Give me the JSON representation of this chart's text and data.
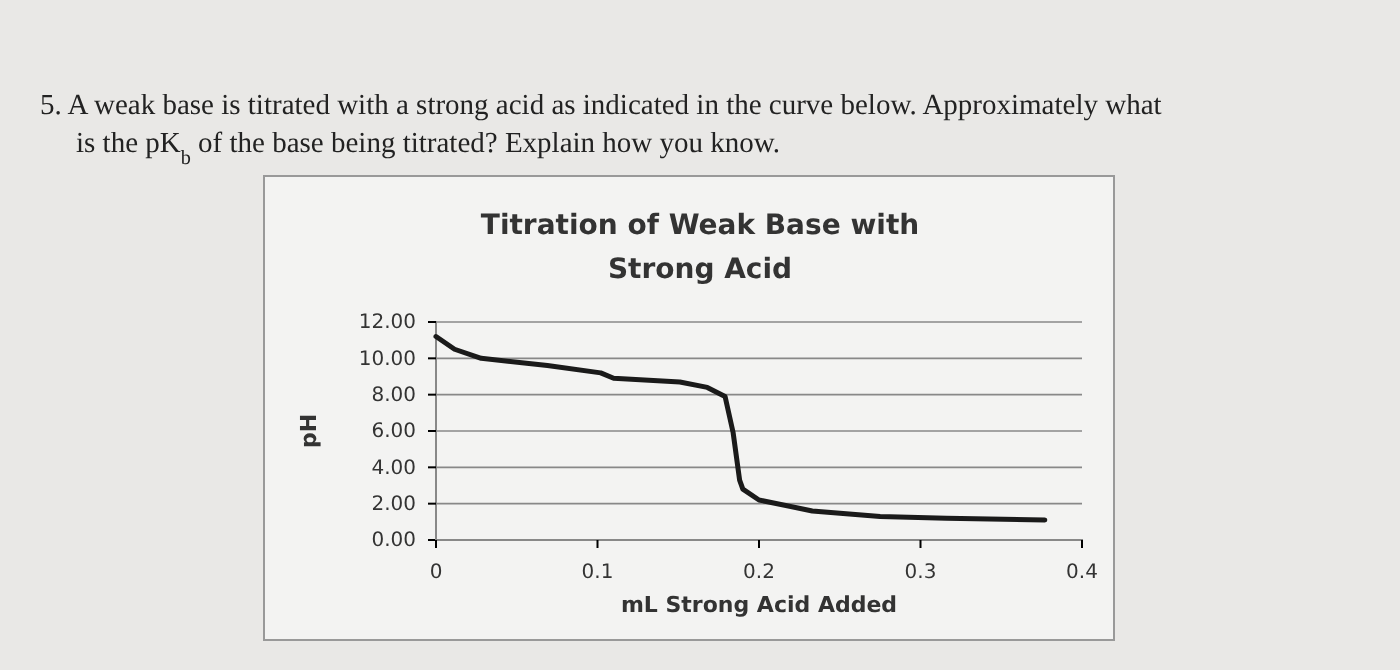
{
  "chart_data": {
    "type": "line",
    "title": "Titration of Weak Base with Strong Acid",
    "xlabel": "mL Strong Acid Added",
    "ylabel": "pH",
    "annotations": [
      "5.  A weak base is titrated with a strong acid as indicated in the curve below.  Approximately what is the pK$_{b}$ of the base being titrated?  Explain how you know."
    ],
    "series": [
      {
        "color": "#1a1a1a",
        "x": [
          0,
          0.0115,
          0.028,
          0.069,
          0.102,
          0.11,
          0.151,
          0.168,
          0.179,
          0.184,
          0.188,
          0.19,
          0.2,
          0.233,
          0.275,
          0.316,
          0.377
        ],
        "values": [
          11.2,
          10.5,
          10.0,
          9.6,
          9.2,
          8.9,
          8.7,
          8.4,
          7.9,
          5.9,
          3.3,
          2.8,
          2.2,
          1.6,
          1.3,
          1.2,
          1.1
        ]
      }
    ],
    "xlim": [
      0,
      0.4
    ],
    "xticks": [
      0,
      0.1,
      0.2,
      0.3,
      0.4
    ],
    "ylim": [
      0,
      12
    ],
    "yticks": [
      {
        "value": 0,
        "label": "0.00"
      },
      {
        "value": 2,
        "label": "2.00"
      },
      {
        "value": 4,
        "label": "4.00"
      },
      {
        "value": 6,
        "label": "6.00"
      },
      {
        "value": 8,
        "label": "8.00"
      },
      {
        "value": 10,
        "label": "10.00"
      },
      {
        "value": 12,
        "label": "12.00"
      }
    ],
    "grid": "y",
    "marker": "none",
    "line_style": "solid"
  }
}
